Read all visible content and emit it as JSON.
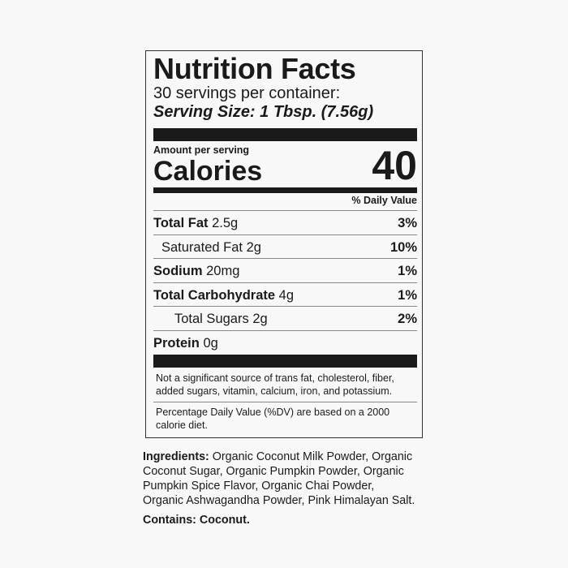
{
  "label": {
    "title": "Nutrition Facts",
    "servings_per_container": "30 servings per container:",
    "serving_size": "Serving Size: 1 Tbsp. (7.56g)",
    "amount_per_serving": "Amount per serving",
    "calories_label": "Calories",
    "calories_value": "40",
    "daily_value_header": "% Daily Value",
    "nutrients": [
      {
        "name": "Total Fat",
        "amount": "2.5g",
        "dv": "3%",
        "bold": true,
        "indent": 0
      },
      {
        "name": "Saturated Fat",
        "amount": "2g",
        "dv": "10%",
        "bold": false,
        "indent": 1
      },
      {
        "name": "Sodium",
        "amount": "20mg",
        "dv": "1%",
        "bold": true,
        "indent": 0
      },
      {
        "name": "Total Carbohydrate",
        "amount": "4g",
        "dv": "1%",
        "bold": true,
        "indent": 0
      },
      {
        "name": "Total Sugars",
        "amount": "2g",
        "dv": "2%",
        "bold": false,
        "indent": 2
      },
      {
        "name": "Protein",
        "amount": "0g",
        "dv": "",
        "bold": true,
        "indent": 0
      }
    ],
    "note_insignificant": "Not a significant source of trans fat, cholesterol, fiber, added sugars, vitamin, calcium, iron, and potassium.",
    "note_dv": "Percentage Daily Value (%DV) are based on a 2000 calorie diet."
  },
  "ingredients": {
    "label": "Ingredients:",
    "lines": [
      " Organic Coconut Milk Powder, Organic",
      "Coconut Sugar, Organic Pumpkin Powder, Organic",
      "Pumpkin Spice Flavor, Organic Chai Powder,",
      "Organic Ashwagandha Powder, Pink Himalayan Salt."
    ]
  },
  "contains": "Contains: Coconut."
}
